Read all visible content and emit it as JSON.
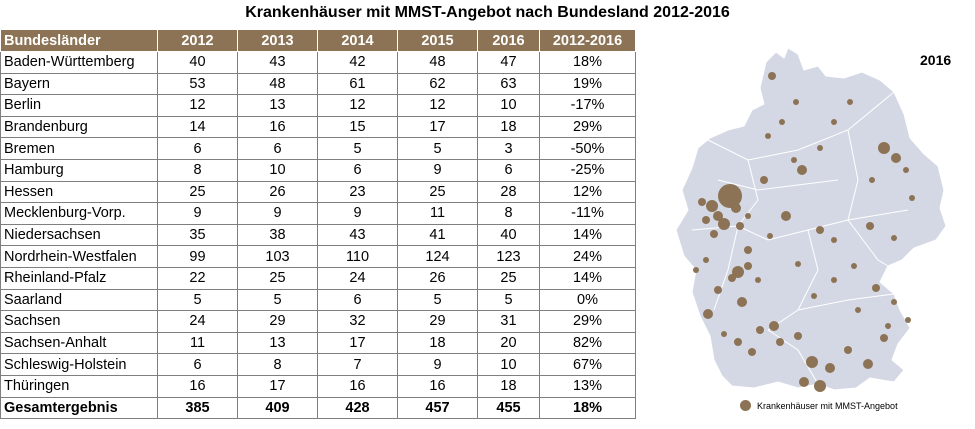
{
  "title": "Krankenhäuser mit MMST-Angebot nach Bundesland 2012-2016",
  "table": {
    "headers": [
      "Bundesländer",
      "2012",
      "2013",
      "2014",
      "2015",
      "2016",
      "2012-2016"
    ],
    "rows": [
      [
        "Baden-Württemberg",
        "40",
        "43",
        "42",
        "48",
        "47",
        "18%"
      ],
      [
        "Bayern",
        "53",
        "48",
        "61",
        "62",
        "63",
        "19%"
      ],
      [
        "Berlin",
        "12",
        "13",
        "12",
        "12",
        "10",
        "-17%"
      ],
      [
        "Brandenburg",
        "14",
        "16",
        "15",
        "17",
        "18",
        "29%"
      ],
      [
        "Bremen",
        "6",
        "6",
        "5",
        "5",
        "3",
        "-50%"
      ],
      [
        "Hamburg",
        "8",
        "10",
        "6",
        "9",
        "6",
        "-25%"
      ],
      [
        "Hessen",
        "25",
        "26",
        "23",
        "25",
        "28",
        "12%"
      ],
      [
        "Mecklenburg-Vorp.",
        "9",
        "9",
        "9",
        "11",
        "8",
        "-11%"
      ],
      [
        "Niedersachsen",
        "35",
        "38",
        "43",
        "41",
        "40",
        "14%"
      ],
      [
        "Nordrhein-Westfalen",
        "99",
        "103",
        "110",
        "124",
        "123",
        "24%"
      ],
      [
        "Rheinland-Pfalz",
        "22",
        "25",
        "24",
        "26",
        "25",
        "14%"
      ],
      [
        "Saarland",
        "5",
        "5",
        "6",
        "5",
        "5",
        "0%"
      ],
      [
        "Sachsen",
        "24",
        "29",
        "32",
        "29",
        "31",
        "29%"
      ],
      [
        "Sachsen-Anhalt",
        "11",
        "13",
        "17",
        "18",
        "20",
        "82%"
      ],
      [
        "Schleswig-Holstein",
        "6",
        "8",
        "7",
        "9",
        "10",
        "67%"
      ],
      [
        "Thüringen",
        "16",
        "17",
        "16",
        "16",
        "18",
        "13%"
      ]
    ],
    "total": [
      "Gesamtergebnis",
      "385",
      "409",
      "428",
      "457",
      "455",
      "18%"
    ]
  },
  "map": {
    "year_label": "2016",
    "legend_label": "Krankenhäuser mit MMST-Angebot",
    "land_color": "#d4d8e4",
    "border_color": "#ffffff",
    "dot_color": "#8c7355"
  }
}
